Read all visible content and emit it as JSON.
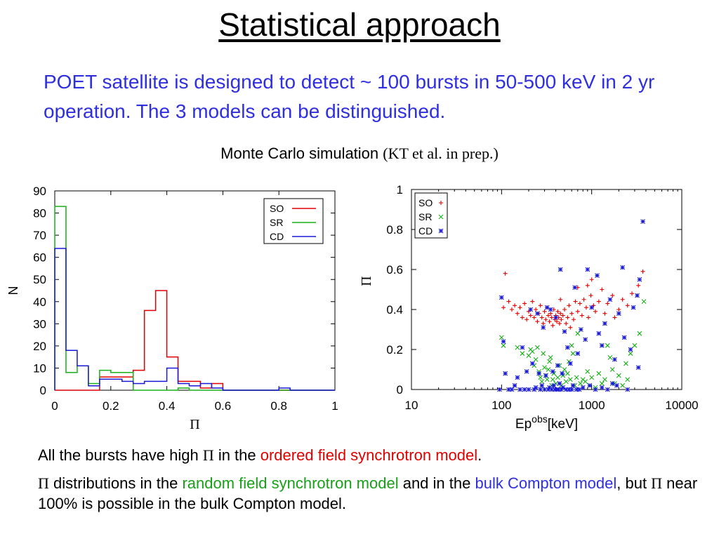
{
  "slide": {
    "title": "Statistical approach",
    "intro": "POET satellite is designed to detect ~ 100 bursts in 50-500 keV in 2 yr operation. The 3 models can be distinguished.",
    "subtitle_main": "Monte Carlo simulation ",
    "subtitle_ref": "(KT et al. in prep.)",
    "bottom1": {
      "a": "All the bursts have high ",
      "pi": "Π",
      "b": " in the ",
      "red": "ordered field synchrotron model",
      "c": "."
    },
    "bottom2": {
      "pi1": "Π",
      "a": " distributions in the ",
      "green": "random field synchrotron model",
      "b": " and in the ",
      "blue": "bulk Compton model",
      "c": ", but ",
      "pi2": "Π",
      "d": " near 100% is possible in the bulk Compton model."
    }
  },
  "colors": {
    "SO": "#e00000",
    "SR": "#18b018",
    "CD": "#1818d8",
    "text_blue": "#2f2fe0"
  },
  "chart_data": [
    {
      "type": "line",
      "subtype": "step-histogram",
      "xlabel": "Π",
      "ylabel": "N",
      "xlim": [
        0,
        1
      ],
      "ylim": [
        0,
        90
      ],
      "xticks": [
        "0",
        "0.2",
        "0.4",
        "0.6",
        "0.8",
        "1"
      ],
      "yticks": [
        "0",
        "10",
        "20",
        "30",
        "40",
        "50",
        "60",
        "70",
        "80",
        "90"
      ],
      "legend_position": "top-right",
      "bin_width": 0.04,
      "bin_starts": [
        0,
        0.04,
        0.08,
        0.12,
        0.16,
        0.2,
        0.24,
        0.28,
        0.32,
        0.36,
        0.4,
        0.44,
        0.48,
        0.52,
        0.56,
        0.6,
        0.64,
        0.68,
        0.72,
        0.76,
        0.8,
        0.84,
        0.88,
        0.92,
        0.96
      ],
      "series": [
        {
          "name": "SO",
          "values": [
            0,
            0,
            0,
            0,
            6,
            6,
            6,
            9,
            36,
            45,
            15,
            4,
            4,
            1,
            3,
            0,
            0,
            0,
            0,
            0,
            0,
            0,
            0,
            0,
            0
          ]
        },
        {
          "name": "SR",
          "values": [
            83,
            8,
            11,
            3,
            9,
            8,
            8,
            0,
            0,
            0,
            0,
            1,
            0,
            0,
            0,
            0,
            0,
            0,
            0,
            0,
            0,
            0,
            0,
            0,
            0
          ]
        },
        {
          "name": "CD",
          "values": [
            64,
            18,
            11,
            2,
            5,
            5,
            4,
            3,
            4,
            4,
            10,
            3,
            2,
            3,
            1,
            0,
            0,
            0,
            0,
            0,
            1,
            0,
            0,
            0,
            0
          ]
        }
      ]
    },
    {
      "type": "scatter",
      "xlabel": "Ep",
      "xlabel_sup": "obs",
      "xlabel_unit": "[keV]",
      "ylabel": "Π",
      "xscale": "log",
      "xlim": [
        10,
        10000
      ],
      "ylim": [
        0,
        1
      ],
      "xticks": [
        "10",
        "100",
        "1000",
        "10000"
      ],
      "yticks": [
        "0",
        "0.2",
        "0.4",
        "0.6",
        "0.8",
        "1"
      ],
      "legend_position": "top-left",
      "series": [
        {
          "name": "SO",
          "marker": "+",
          "points": [
            [
              105,
              0.41
            ],
            [
              110,
              0.58
            ],
            [
              120,
              0.44
            ],
            [
              130,
              0.4
            ],
            [
              140,
              0.42
            ],
            [
              150,
              0.38
            ],
            [
              160,
              0.41
            ],
            [
              170,
              0.36
            ],
            [
              180,
              0.43
            ],
            [
              190,
              0.35
            ],
            [
              200,
              0.39
            ],
            [
              210,
              0.37
            ],
            [
              220,
              0.44
            ],
            [
              230,
              0.36
            ],
            [
              240,
              0.4
            ],
            [
              250,
              0.34
            ],
            [
              260,
              0.38
            ],
            [
              270,
              0.42
            ],
            [
              280,
              0.36
            ],
            [
              290,
              0.33
            ],
            [
              300,
              0.39
            ],
            [
              310,
              0.35
            ],
            [
              320,
              0.41
            ],
            [
              330,
              0.37
            ],
            [
              340,
              0.34
            ],
            [
              350,
              0.38
            ],
            [
              360,
              0.36
            ],
            [
              370,
              0.32
            ],
            [
              380,
              0.4
            ],
            [
              390,
              0.35
            ],
            [
              400,
              0.37
            ],
            [
              410,
              0.34
            ],
            [
              420,
              0.39
            ],
            [
              430,
              0.36
            ],
            [
              440,
              0.33
            ],
            [
              450,
              0.38
            ],
            [
              460,
              0.35
            ],
            [
              480,
              0.37
            ],
            [
              500,
              0.4
            ],
            [
              520,
              0.33
            ],
            [
              540,
              0.36
            ],
            [
              560,
              0.42
            ],
            [
              580,
              0.31
            ],
            [
              600,
              0.38
            ],
            [
              630,
              0.35
            ],
            [
              660,
              0.44
            ],
            [
              700,
              0.39
            ],
            [
              740,
              0.43
            ],
            [
              780,
              0.37
            ],
            [
              820,
              0.45
            ],
            [
              870,
              0.41
            ],
            [
              920,
              0.36
            ],
            [
              980,
              0.47
            ],
            [
              1050,
              0.42
            ],
            [
              1100,
              0.39
            ],
            [
              1200,
              0.44
            ],
            [
              1300,
              0.5
            ],
            [
              1400,
              0.38
            ],
            [
              1500,
              0.43
            ],
            [
              1700,
              0.47
            ],
            [
              1800,
              0.36
            ],
            [
              2000,
              0.4
            ],
            [
              2200,
              0.45
            ],
            [
              2500,
              0.42
            ],
            [
              2800,
              0.48
            ],
            [
              3300,
              0.52
            ],
            [
              3700,
              0.59
            ],
            [
              450,
              0.45
            ],
            [
              700,
              0.51
            ],
            [
              900,
              0.52
            ],
            [
              1000,
              0.55
            ]
          ]
        },
        {
          "name": "SR",
          "marker": "x",
          "points": [
            [
              100,
              0.26
            ],
            [
              105,
              0.22
            ],
            [
              150,
              0.21
            ],
            [
              170,
              0.18
            ],
            [
              200,
              0.17
            ],
            [
              210,
              0.2
            ],
            [
              220,
              0.19
            ],
            [
              230,
              0.12
            ],
            [
              240,
              0.15
            ],
            [
              250,
              0.21
            ],
            [
              260,
              0.09
            ],
            [
              270,
              0.06
            ],
            [
              280,
              0.04
            ],
            [
              290,
              0.18
            ],
            [
              300,
              0.11
            ],
            [
              310,
              0.07
            ],
            [
              320,
              0.05
            ],
            [
              330,
              0.1
            ],
            [
              340,
              0.14
            ],
            [
              350,
              0.16
            ],
            [
              360,
              0.02
            ],
            [
              370,
              0.05
            ],
            [
              380,
              0.08
            ],
            [
              400,
              0.03
            ],
            [
              420,
              0.06
            ],
            [
              440,
              0.12
            ],
            [
              460,
              0.02
            ],
            [
              480,
              0.07
            ],
            [
              500,
              0.1
            ],
            [
              520,
              0.04
            ],
            [
              540,
              0.08
            ],
            [
              560,
              0.14
            ],
            [
              580,
              0.05
            ],
            [
              600,
              0.22
            ],
            [
              620,
              0.18
            ],
            [
              650,
              0.02
            ],
            [
              680,
              0.06
            ],
            [
              700,
              0.28
            ],
            [
              750,
              0.03
            ],
            [
              800,
              0.05
            ],
            [
              850,
              0.04
            ],
            [
              900,
              0.09
            ],
            [
              950,
              0.02
            ],
            [
              1000,
              0.06
            ],
            [
              1100,
              0.01
            ],
            [
              1200,
              0.08
            ],
            [
              1300,
              0.03
            ],
            [
              1400,
              0.05
            ],
            [
              1500,
              0.22
            ],
            [
              1700,
              0.1
            ],
            [
              1800,
              0.03
            ],
            [
              2000,
              0.07
            ],
            [
              2200,
              0.02
            ],
            [
              2500,
              0.05
            ],
            [
              2700,
              0.18
            ],
            [
              3000,
              0.22
            ],
            [
              3400,
              0.28
            ],
            [
              3800,
              0.44
            ],
            [
              2400,
              0.13
            ],
            [
              1600,
              0.16
            ]
          ]
        },
        {
          "name": "CD",
          "marker": "*",
          "points": [
            [
              95,
              0.0
            ],
            [
              100,
              0.46
            ],
            [
              105,
              0.24
            ],
            [
              110,
              0.08
            ],
            [
              120,
              0.0
            ],
            [
              130,
              0.0
            ],
            [
              140,
              0.02
            ],
            [
              150,
              0.06
            ],
            [
              160,
              0.0
            ],
            [
              170,
              0.21
            ],
            [
              180,
              0.0
            ],
            [
              190,
              0.09
            ],
            [
              200,
              0.0
            ],
            [
              210,
              0.4
            ],
            [
              220,
              0.13
            ],
            [
              230,
              0.0
            ],
            [
              240,
              0.01
            ],
            [
              250,
              0.38
            ],
            [
              260,
              0.08
            ],
            [
              270,
              0.0
            ],
            [
              280,
              0.02
            ],
            [
              290,
              0.31
            ],
            [
              300,
              0.0
            ],
            [
              310,
              0.07
            ],
            [
              320,
              0.41
            ],
            [
              330,
              0.0
            ],
            [
              340,
              0.01
            ],
            [
              350,
              0.4
            ],
            [
              360,
              0.0
            ],
            [
              370,
              0.09
            ],
            [
              380,
              0.02
            ],
            [
              390,
              0.0
            ],
            [
              400,
              0.36
            ],
            [
              410,
              0.0
            ],
            [
              420,
              0.12
            ],
            [
              430,
              0.0
            ],
            [
              440,
              0.03
            ],
            [
              450,
              0.6
            ],
            [
              460,
              0.0
            ],
            [
              470,
              0.08
            ],
            [
              480,
              0.01
            ],
            [
              500,
              0.29
            ],
            [
              520,
              0.0
            ],
            [
              540,
              0.21
            ],
            [
              560,
              0.0
            ],
            [
              580,
              0.13
            ],
            [
              600,
              0.0
            ],
            [
              620,
              0.02
            ],
            [
              650,
              0.51
            ],
            [
              680,
              0.0
            ],
            [
              700,
              0.18
            ],
            [
              730,
              0.0
            ],
            [
              760,
              0.3
            ],
            [
              800,
              0.01
            ],
            [
              850,
              0.25
            ],
            [
              900,
              0.6
            ],
            [
              950,
              0.02
            ],
            [
              1000,
              0.41
            ],
            [
              1100,
              0.0
            ],
            [
              1150,
              0.57
            ],
            [
              1200,
              0.28
            ],
            [
              1300,
              0.01
            ],
            [
              1400,
              0.33
            ],
            [
              1500,
              0.0
            ],
            [
              1600,
              0.45
            ],
            [
              1700,
              0.03
            ],
            [
              1800,
              0.15
            ],
            [
              1900,
              0.02
            ],
            [
              2000,
              0.38
            ],
            [
              2200,
              0.61
            ],
            [
              2300,
              0.26
            ],
            [
              2500,
              0.0
            ],
            [
              2700,
              0.2
            ],
            [
              2900,
              0.41
            ],
            [
              3200,
              0.47
            ],
            [
              3400,
              0.55
            ],
            [
              3700,
              0.84
            ],
            [
              3300,
              0.11
            ],
            [
              1300,
              0.22
            ]
          ]
        }
      ]
    }
  ]
}
